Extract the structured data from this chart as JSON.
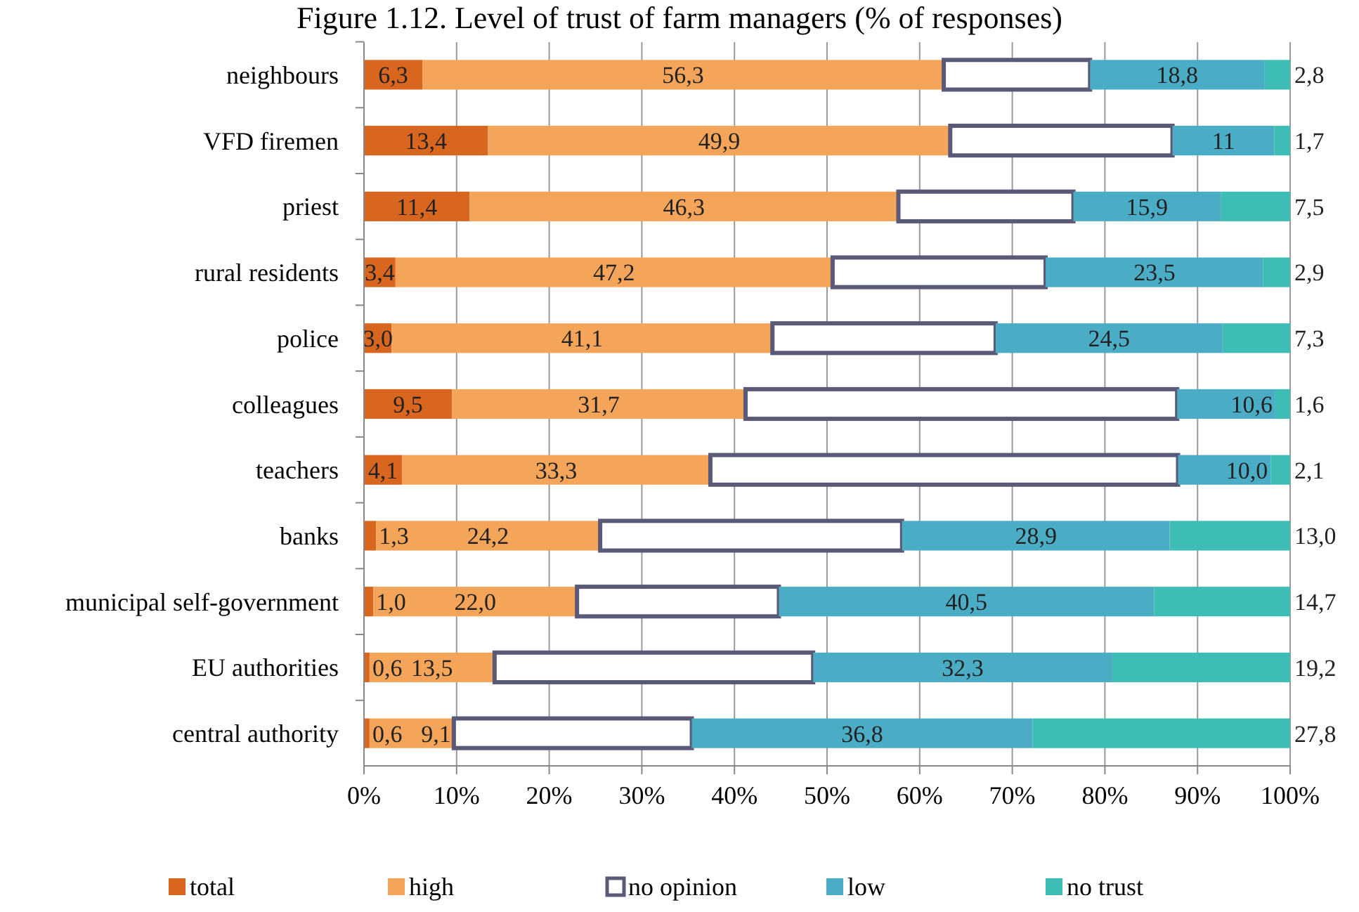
{
  "chart_data": {
    "type": "bar",
    "orientation": "horizontal",
    "stacked": true,
    "title": "Figure 1.12. Level of trust of farm managers (% of responses)",
    "categories": [
      "neighbours",
      "VFD firemen",
      "priest",
      "rural residents",
      "police",
      "colleagues",
      "teachers",
      "banks",
      "municipal self-government",
      "EU authorities",
      "central authority"
    ],
    "series": [
      {
        "name": "total",
        "color": "#d9661f",
        "values": [
          6.3,
          13.4,
          11.4,
          3.4,
          3.0,
          9.5,
          4.1,
          1.3,
          1.0,
          0.6,
          0.6
        ],
        "value_labels": [
          "6,3",
          "13,4",
          "11,4",
          "3,4",
          "3,0",
          "9,5",
          "4,1",
          "1,3",
          "1,0",
          "0,6",
          "0,6"
        ]
      },
      {
        "name": "high",
        "color": "#f4a55a",
        "values": [
          56.3,
          49.9,
          46.3,
          47.2,
          41.1,
          31.7,
          33.3,
          24.2,
          22.0,
          13.5,
          9.1
        ],
        "value_labels": [
          "56,3",
          "49,9",
          "46,3",
          "47,2",
          "41,1",
          "31,7",
          "33,3",
          "24,2",
          "22,0",
          "13,5",
          "9,1"
        ]
      },
      {
        "name": "no opinion",
        "color": "#ffffff",
        "values": [
          15.8,
          24.0,
          18.9,
          23.0,
          24.1,
          46.6,
          50.5,
          32.6,
          21.8,
          34.4,
          25.7
        ],
        "value_labels": [
          null,
          null,
          null,
          null,
          null,
          null,
          null,
          null,
          null,
          null,
          null
        ]
      },
      {
        "name": "low",
        "color": "#4bacc6",
        "values": [
          18.8,
          11,
          15.9,
          23.5,
          24.5,
          10.6,
          10.0,
          28.9,
          40.5,
          32.3,
          36.8
        ],
        "value_labels": [
          "18,8",
          "11",
          "15,9",
          "23,5",
          "24,5",
          "10,6",
          "10,0",
          "28,9",
          "40,5",
          "32,3",
          "36,8"
        ]
      },
      {
        "name": "no trust",
        "color": "#3dbdb5",
        "values": [
          2.8,
          1.7,
          7.5,
          2.9,
          7.3,
          1.6,
          2.1,
          13.0,
          14.7,
          19.2,
          27.8
        ],
        "value_labels": [
          "2,8",
          "1,7",
          "7,5",
          "2,9",
          "7,3",
          "1,6",
          "2,1",
          "13,0",
          "14,7",
          "19,2",
          "27,8"
        ]
      }
    ],
    "xlim": [
      0,
      100
    ],
    "xticks": [
      {
        "value": 0,
        "label": "0%"
      },
      {
        "value": 10,
        "label": "10%"
      },
      {
        "value": 20,
        "label": "20%"
      },
      {
        "value": 30,
        "label": "30%"
      },
      {
        "value": 40,
        "label": "40%"
      },
      {
        "value": 50,
        "label": "50%"
      },
      {
        "value": 60,
        "label": "60%"
      },
      {
        "value": 70,
        "label": "70%"
      },
      {
        "value": 80,
        "label": "80%"
      },
      {
        "value": 90,
        "label": "90%"
      },
      {
        "value": 100,
        "label": "100%"
      }
    ],
    "grid": "x",
    "legend": "bottom"
  }
}
